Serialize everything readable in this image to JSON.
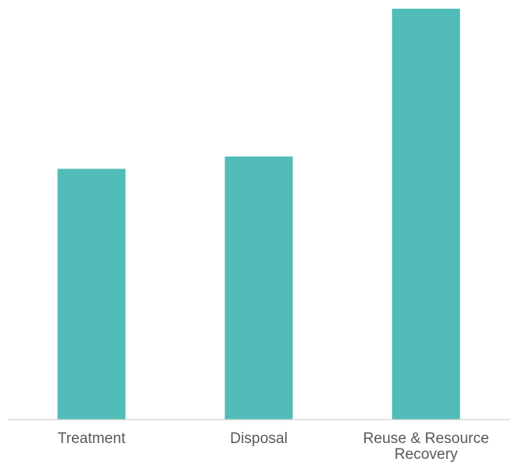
{
  "chart_data": {
    "type": "bar",
    "categories": [
      "Treatment",
      "Disposal",
      "Reuse & Resource Recovery"
    ],
    "category_lines": [
      [
        "Treatment"
      ],
      [
        "Disposal"
      ],
      [
        "Reuse & Resource",
        "Recovery"
      ]
    ],
    "values": [
      61,
      64,
      100
    ],
    "title": "",
    "xlabel": "",
    "ylabel": "",
    "ylim": [
      0,
      100
    ],
    "grid": false,
    "legend": "none",
    "colors": {
      "bar": "#52BCB9",
      "axis": "#D9D9D9",
      "tick_label": "#595959"
    }
  }
}
